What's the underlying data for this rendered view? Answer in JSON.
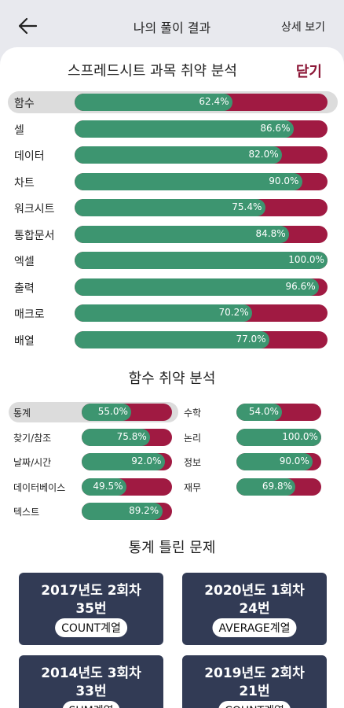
{
  "header": {
    "title": "나의 풀이 결과",
    "detail_label": "상세 보기"
  },
  "subject_section": {
    "title": "스프레드시트 과목 취약 분석",
    "close_label": "닫기"
  },
  "subjects": [
    {
      "label": "함수",
      "percent": 62.4,
      "percent_text": "62.4%",
      "selected": true
    },
    {
      "label": "셀",
      "percent": 86.6,
      "percent_text": "86.6%",
      "selected": false
    },
    {
      "label": "데이터",
      "percent": 82.0,
      "percent_text": "82.0%",
      "selected": false
    },
    {
      "label": "차트",
      "percent": 90.0,
      "percent_text": "90.0%",
      "selected": false
    },
    {
      "label": "워크시트",
      "percent": 75.4,
      "percent_text": "75.4%",
      "selected": false
    },
    {
      "label": "통합문서",
      "percent": 84.8,
      "percent_text": "84.8%",
      "selected": false
    },
    {
      "label": "엑셀",
      "percent": 100.0,
      "percent_text": "100.0%",
      "selected": false
    },
    {
      "label": "출력",
      "percent": 96.6,
      "percent_text": "96.6%",
      "selected": false
    },
    {
      "label": "매크로",
      "percent": 70.2,
      "percent_text": "70.2%",
      "selected": false
    },
    {
      "label": "배열",
      "percent": 77.0,
      "percent_text": "77.0%",
      "selected": false
    }
  ],
  "function_section": {
    "title": "함수 취약 분석"
  },
  "functions_left": [
    {
      "label": "통계",
      "percent": 55.0,
      "percent_text": "55.0%",
      "selected": true
    },
    {
      "label": "찾기/참조",
      "percent": 75.8,
      "percent_text": "75.8%",
      "selected": false
    },
    {
      "label": "날짜/시간",
      "percent": 92.0,
      "percent_text": "92.0%",
      "selected": false
    },
    {
      "label": "데이터베이스",
      "percent": 49.5,
      "percent_text": "49.5%",
      "selected": false
    },
    {
      "label": "텍스트",
      "percent": 89.2,
      "percent_text": "89.2%",
      "selected": false
    }
  ],
  "functions_right": [
    {
      "label": "수학",
      "percent": 54.0,
      "percent_text": "54.0%",
      "selected": false
    },
    {
      "label": "논리",
      "percent": 100.0,
      "percent_text": "100.0%",
      "selected": false
    },
    {
      "label": "정보",
      "percent": 90.0,
      "percent_text": "90.0%",
      "selected": false
    },
    {
      "label": "재무",
      "percent": 69.8,
      "percent_text": "69.8%",
      "selected": false
    }
  ],
  "wrong_section": {
    "title": "통계 틀린 문제"
  },
  "wrong_cards": [
    {
      "line1": "2017년도 2회차",
      "line2": "35번",
      "tag": "COUNT계열"
    },
    {
      "line1": "2020년도 1회차",
      "line2": "24번",
      "tag": "AVERAGE계열"
    },
    {
      "line1": "2014년도 3회차",
      "line2": "33번",
      "tag": "SUM계열"
    },
    {
      "line1": "2019년도 2회차",
      "line2": "21번",
      "tag": "COUNT계열"
    }
  ],
  "colors": {
    "correct": "#3d9570",
    "wrong": "#a01a42",
    "card": "#323b55",
    "accent": "#8b1535"
  }
}
